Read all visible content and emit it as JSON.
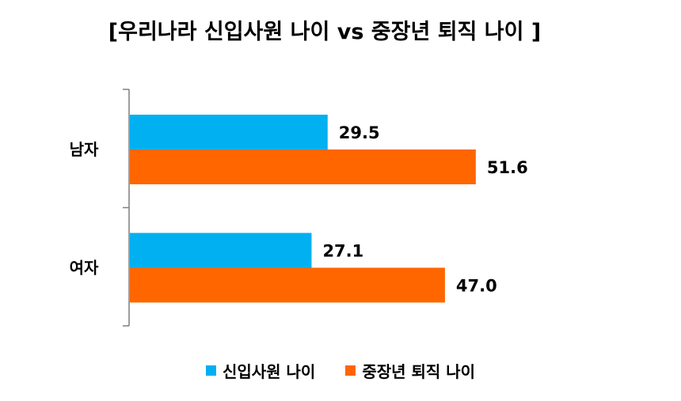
{
  "chart_data": {
    "type": "bar",
    "orientation": "horizontal",
    "title": "[우리나라 신입사원 나이 vs 중장년 퇴직 나이 ]",
    "categories": [
      "남자",
      "여자"
    ],
    "series": [
      {
        "name": "신입사원 나이",
        "color": "#00B0F0",
        "values": [
          29.5,
          27.1
        ]
      },
      {
        "name": "중장년 퇴직 나이",
        "color": "#FF6600",
        "values": [
          51.6,
          47.0
        ]
      }
    ],
    "value_labels": [
      [
        "29.5",
        "27.1"
      ],
      [
        "51.6",
        "47.0"
      ]
    ],
    "xlim": [
      0,
      60
    ],
    "grid": false,
    "legend_position": "bottom"
  }
}
